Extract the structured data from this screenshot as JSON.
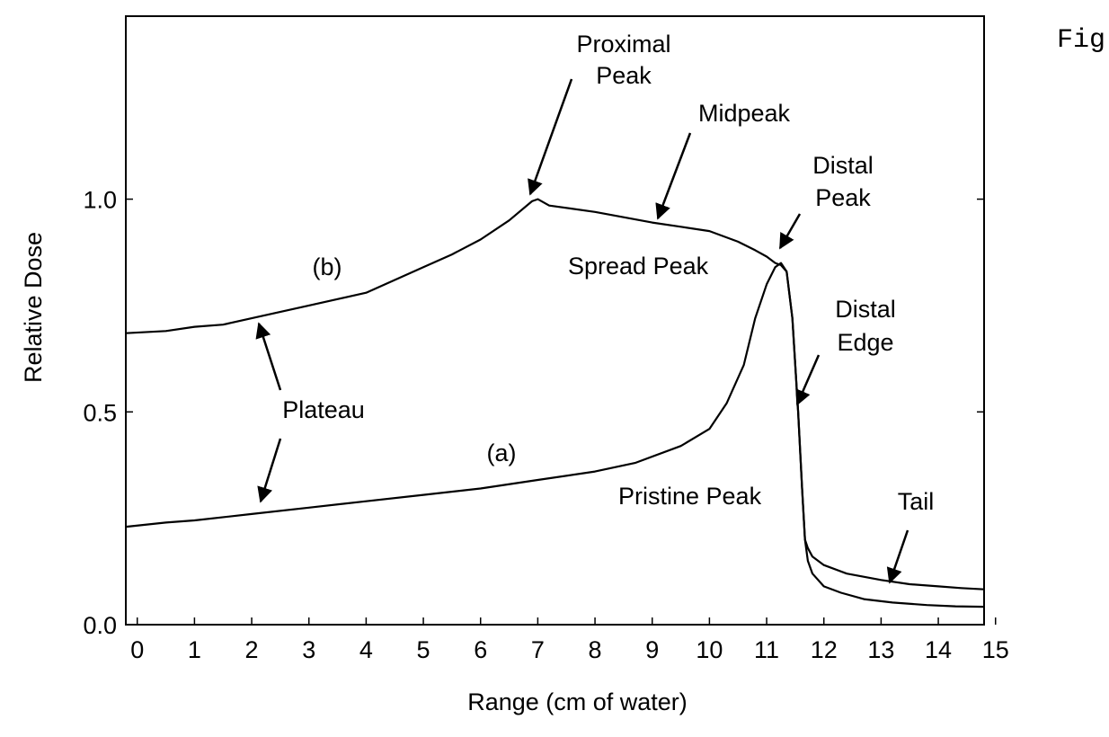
{
  "figure_label": "Fig",
  "chart_data": {
    "type": "line",
    "title": "",
    "xlabel": "Range (cm of water)",
    "ylabel": "Relative Dose",
    "xlim": [
      -0.2,
      14.8
    ],
    "ylim": [
      0.0,
      1.43
    ],
    "x_ticks": [
      0,
      1,
      2,
      3,
      4,
      5,
      6,
      7,
      8,
      9,
      10,
      11,
      12,
      13,
      14,
      15
    ],
    "y_ticks": [
      0.0,
      0.5,
      1.0
    ],
    "y_tick_labels": [
      "0.0",
      "0.5",
      "1.0"
    ],
    "grid": false,
    "legend": "none",
    "series": [
      {
        "name": "(a)",
        "x": [
          -0.2,
          0.5,
          1.0,
          2.0,
          3.0,
          4.0,
          5.0,
          6.0,
          7.0,
          8.0,
          8.7,
          9.5,
          10.0,
          10.3,
          10.6,
          10.8,
          11.0,
          11.15,
          11.25,
          11.35,
          11.45,
          11.55,
          11.62,
          11.67,
          11.72,
          11.8,
          12.0,
          12.3,
          12.7,
          13.2,
          13.8,
          14.3,
          14.8
        ],
        "y": [
          0.23,
          0.24,
          0.245,
          0.26,
          0.275,
          0.29,
          0.305,
          0.32,
          0.34,
          0.36,
          0.38,
          0.42,
          0.46,
          0.52,
          0.61,
          0.72,
          0.8,
          0.84,
          0.85,
          0.83,
          0.72,
          0.5,
          0.32,
          0.2,
          0.15,
          0.12,
          0.09,
          0.075,
          0.06,
          0.052,
          0.046,
          0.043,
          0.042
        ]
      },
      {
        "name": "(b)",
        "x": [
          -0.2,
          0.5,
          1.0,
          1.5,
          2.0,
          3.0,
          4.0,
          5.0,
          5.5,
          6.0,
          6.5,
          6.9,
          7.0,
          7.2,
          8.0,
          9.0,
          9.5,
          10.0,
          10.5,
          10.8,
          11.0,
          11.15,
          11.25,
          11.35,
          11.45,
          11.55,
          11.62,
          11.67,
          11.72,
          11.8,
          12.0,
          12.4,
          13.0,
          13.5,
          14.0,
          14.4,
          14.8
        ],
        "y": [
          0.685,
          0.69,
          0.7,
          0.705,
          0.72,
          0.75,
          0.78,
          0.84,
          0.87,
          0.905,
          0.95,
          0.995,
          1.0,
          0.985,
          0.97,
          0.945,
          0.935,
          0.925,
          0.9,
          0.88,
          0.865,
          0.85,
          0.845,
          0.83,
          0.72,
          0.5,
          0.32,
          0.2,
          0.18,
          0.16,
          0.14,
          0.12,
          0.105,
          0.095,
          0.09,
          0.086,
          0.083
        ]
      }
    ],
    "annotations": [
      {
        "id": "proximal-peak",
        "lines": [
          "Proximal",
          "Peak"
        ]
      },
      {
        "id": "midpeak",
        "lines": [
          "Midpeak"
        ]
      },
      {
        "id": "distal-peak",
        "lines": [
          "Distal",
          "Peak"
        ]
      },
      {
        "id": "spread-peak",
        "lines": [
          "Spread Peak"
        ]
      },
      {
        "id": "distal-edge",
        "lines": [
          "Distal",
          "Edge"
        ]
      },
      {
        "id": "b-label",
        "lines": [
          "(b)"
        ]
      },
      {
        "id": "plateau",
        "lines": [
          "Plateau"
        ]
      },
      {
        "id": "a-label",
        "lines": [
          "(a)"
        ]
      },
      {
        "id": "pristine-peak",
        "lines": [
          "Pristine Peak"
        ]
      },
      {
        "id": "tail",
        "lines": [
          "Tail"
        ]
      }
    ]
  }
}
